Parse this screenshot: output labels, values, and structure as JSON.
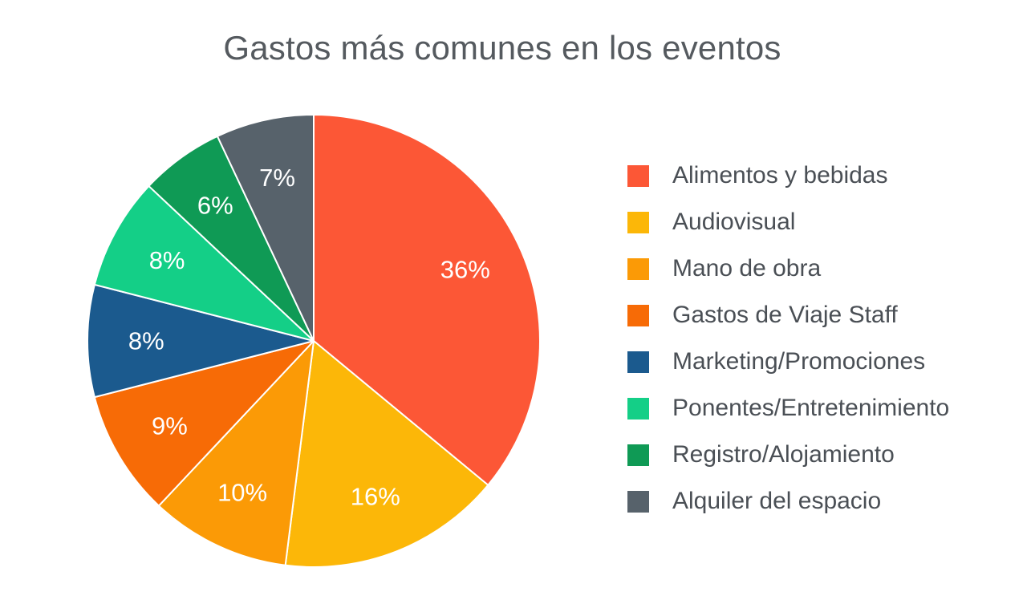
{
  "chart_data": {
    "type": "pie",
    "title": "Gastos más comunes en los eventos",
    "legend_position": "right",
    "slices": [
      {
        "name": "Alimentos y bebidas",
        "value": 36,
        "label": "36%",
        "color": "#fc5736"
      },
      {
        "name": "Audiovisual",
        "value": 16,
        "label": "16%",
        "color": "#fcb708"
      },
      {
        "name": "Mano de obra",
        "value": 10,
        "label": "10%",
        "color": "#fb9a06"
      },
      {
        "name": "Gastos de Viaje  Staff",
        "value": 9,
        "label": "9%",
        "color": "#f76b06"
      },
      {
        "name": "Marketing/Promociones",
        "value": 8,
        "label": "8%",
        "color": "#1b5a8e"
      },
      {
        "name": "Ponentes/Entretenimiento",
        "value": 8,
        "label": "8%",
        "color": "#14cf87"
      },
      {
        "name": "Registro/Alojamiento",
        "value": 6,
        "label": "6%",
        "color": "#0f9a55"
      },
      {
        "name": "Alquiler del espacio",
        "value": 7,
        "label": "7%",
        "color": "#57626b"
      }
    ]
  }
}
